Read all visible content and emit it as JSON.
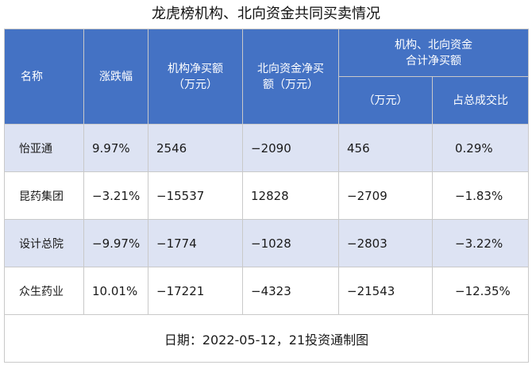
{
  "title": "龙虎榜机构、北向资金共同买卖情况",
  "headers": {
    "name": "名称",
    "change": "涨跌幅",
    "inst_net_line1": "机构净买额",
    "inst_net_line2": "（万元）",
    "north_net_line1": "北向资金净买",
    "north_net_line2": "额（万元）",
    "combined_line1": "机构、北向资金",
    "combined_line2": "合计净买额",
    "combined_sub_amount": "（万元）",
    "combined_sub_ratio": "占总成交比"
  },
  "rows": [
    {
      "name": "怡亚通",
      "change": "9.97%",
      "inst_net": "2546",
      "north_net": "−2090",
      "combined": "456",
      "ratio": "0.29%"
    },
    {
      "name": "昆药集团",
      "change": "−3.21%",
      "inst_net": "−15537",
      "north_net": "12828",
      "combined": "−2709",
      "ratio": "−1.83%"
    },
    {
      "name": "设计总院",
      "change": "−9.97%",
      "inst_net": "−1774",
      "north_net": "−1028",
      "combined": "−2803",
      "ratio": "−3.22%"
    },
    {
      "name": "众生药业",
      "change": "10.01%",
      "inst_net": "−17221",
      "north_net": "−4323",
      "combined": "−21543",
      "ratio": "−12.35%"
    }
  ],
  "footer": "日期：2022-05-12，21投资通制图",
  "colors": {
    "header_bg": "#4472c4",
    "band_bg": "#dde3f3"
  }
}
